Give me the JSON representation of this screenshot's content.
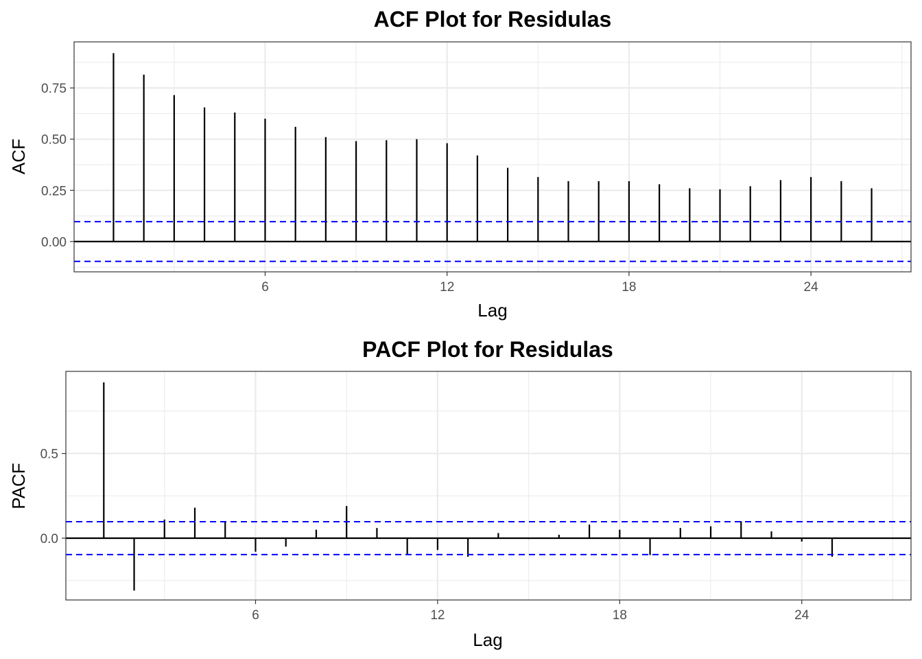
{
  "chart_data": [
    {
      "type": "bar",
      "subtype": "acf-stem",
      "title": "ACF Plot for Residulas",
      "xlabel": "Lag",
      "ylabel": "ACF",
      "x": [
        1,
        2,
        3,
        4,
        5,
        6,
        7,
        8,
        9,
        10,
        11,
        12,
        13,
        14,
        15,
        16,
        17,
        18,
        19,
        20,
        21,
        22,
        23,
        24,
        25,
        26
      ],
      "values": [
        0.92,
        0.815,
        0.715,
        0.655,
        0.63,
        0.6,
        0.56,
        0.51,
        0.49,
        0.495,
        0.5,
        0.48,
        0.42,
        0.36,
        0.315,
        0.295,
        0.295,
        0.295,
        0.28,
        0.26,
        0.255,
        0.27,
        0.3,
        0.315,
        0.295,
        0.26
      ],
      "conf_limit": 0.097,
      "xlim": [
        -0.3,
        27.3
      ],
      "ylim": [
        -0.148,
        0.975
      ],
      "xticks": [
        6,
        12,
        18,
        24
      ],
      "xtick_labels": [
        "6",
        "12",
        "18",
        "24"
      ],
      "xminor": [
        3,
        9,
        15,
        21,
        27
      ],
      "yticks": [
        0,
        0.25,
        0.5,
        0.75
      ],
      "ytick_labels": [
        "0.00",
        "0.25",
        "0.50",
        "0.75"
      ],
      "yminor": [
        -0.125,
        0.125,
        0.375,
        0.625,
        0.875
      ],
      "grid": true,
      "colors": {
        "spike": "#000000",
        "confidence": "#0000ff",
        "grid": "#ebebeb"
      }
    },
    {
      "type": "bar",
      "subtype": "pacf-stem",
      "title": "PACF Plot for Residulas",
      "xlabel": "Lag",
      "ylabel": "PACF",
      "x": [
        1,
        2,
        3,
        4,
        5,
        6,
        7,
        8,
        9,
        10,
        11,
        12,
        13,
        14,
        15,
        16,
        17,
        18,
        19,
        20,
        21,
        22,
        23,
        24,
        25
      ],
      "values": [
        0.92,
        -0.31,
        0.11,
        0.18,
        0.1,
        -0.08,
        -0.05,
        0.05,
        0.19,
        0.06,
        -0.1,
        -0.07,
        -0.11,
        0.03,
        -0.005,
        0.02,
        0.08,
        0.05,
        -0.1,
        0.06,
        0.07,
        0.1,
        0.04,
        -0.02,
        -0.11
      ],
      "conf_limit": 0.097,
      "xlim": [
        -0.25,
        27.6
      ],
      "ylim": [
        -0.365,
        0.985
      ],
      "xticks": [
        6,
        12,
        18,
        24
      ],
      "xtick_labels": [
        "6",
        "12",
        "18",
        "24"
      ],
      "xminor": [
        3,
        9,
        15,
        21,
        27
      ],
      "yticks": [
        0,
        0.5
      ],
      "ytick_labels": [
        "0.0",
        "0.5"
      ],
      "yminor": [
        -0.25,
        0.25,
        0.75
      ],
      "grid": true,
      "colors": {
        "spike": "#000000",
        "confidence": "#0000ff",
        "grid": "#ebebeb"
      }
    }
  ]
}
